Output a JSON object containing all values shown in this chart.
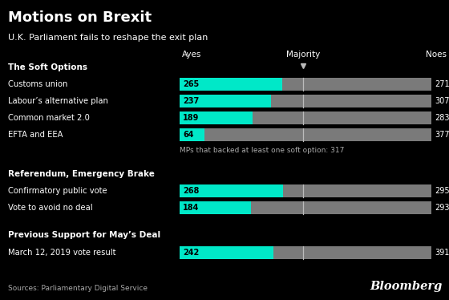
{
  "title": "Motions on Brexit",
  "subtitle": "U.K. Parliament fails to reshape the exit plan",
  "background_color": "#000000",
  "text_color": "#ffffff",
  "teal_color": "#00e8c8",
  "gray_color": "#7a7a7a",
  "majority_line_color": "#bbbbbb",
  "note_color": "#aaaaaa",
  "majority": 320,
  "max_value": 650,
  "sections": [
    {
      "header": "The Soft Options",
      "rows": [
        {
          "label": "Customs union",
          "ayes": 265,
          "noes": 271
        },
        {
          "label": "Labour’s alternative plan",
          "ayes": 237,
          "noes": 307
        },
        {
          "label": "Common market 2.0",
          "ayes": 189,
          "noes": 283
        },
        {
          "label": "EFTA and EEA",
          "ayes": 64,
          "noes": 377
        }
      ],
      "note": "MPs that backed at least one soft option: 317"
    },
    {
      "header": "Referendum, Emergency Brake",
      "rows": [
        {
          "label": "Confirmatory public vote",
          "ayes": 268,
          "noes": 295
        },
        {
          "label": "Vote to avoid no deal",
          "ayes": 184,
          "noes": 293
        }
      ],
      "note": null
    },
    {
      "header": "Previous Support for May’s Deal",
      "rows": [
        {
          "label": "March 12, 2019 vote result",
          "ayes": 242,
          "noes": 391
        }
      ],
      "note": null
    }
  ],
  "sources_text": "Sources: Parliamentary Digital Service",
  "bloomberg_text": "Bloomberg"
}
